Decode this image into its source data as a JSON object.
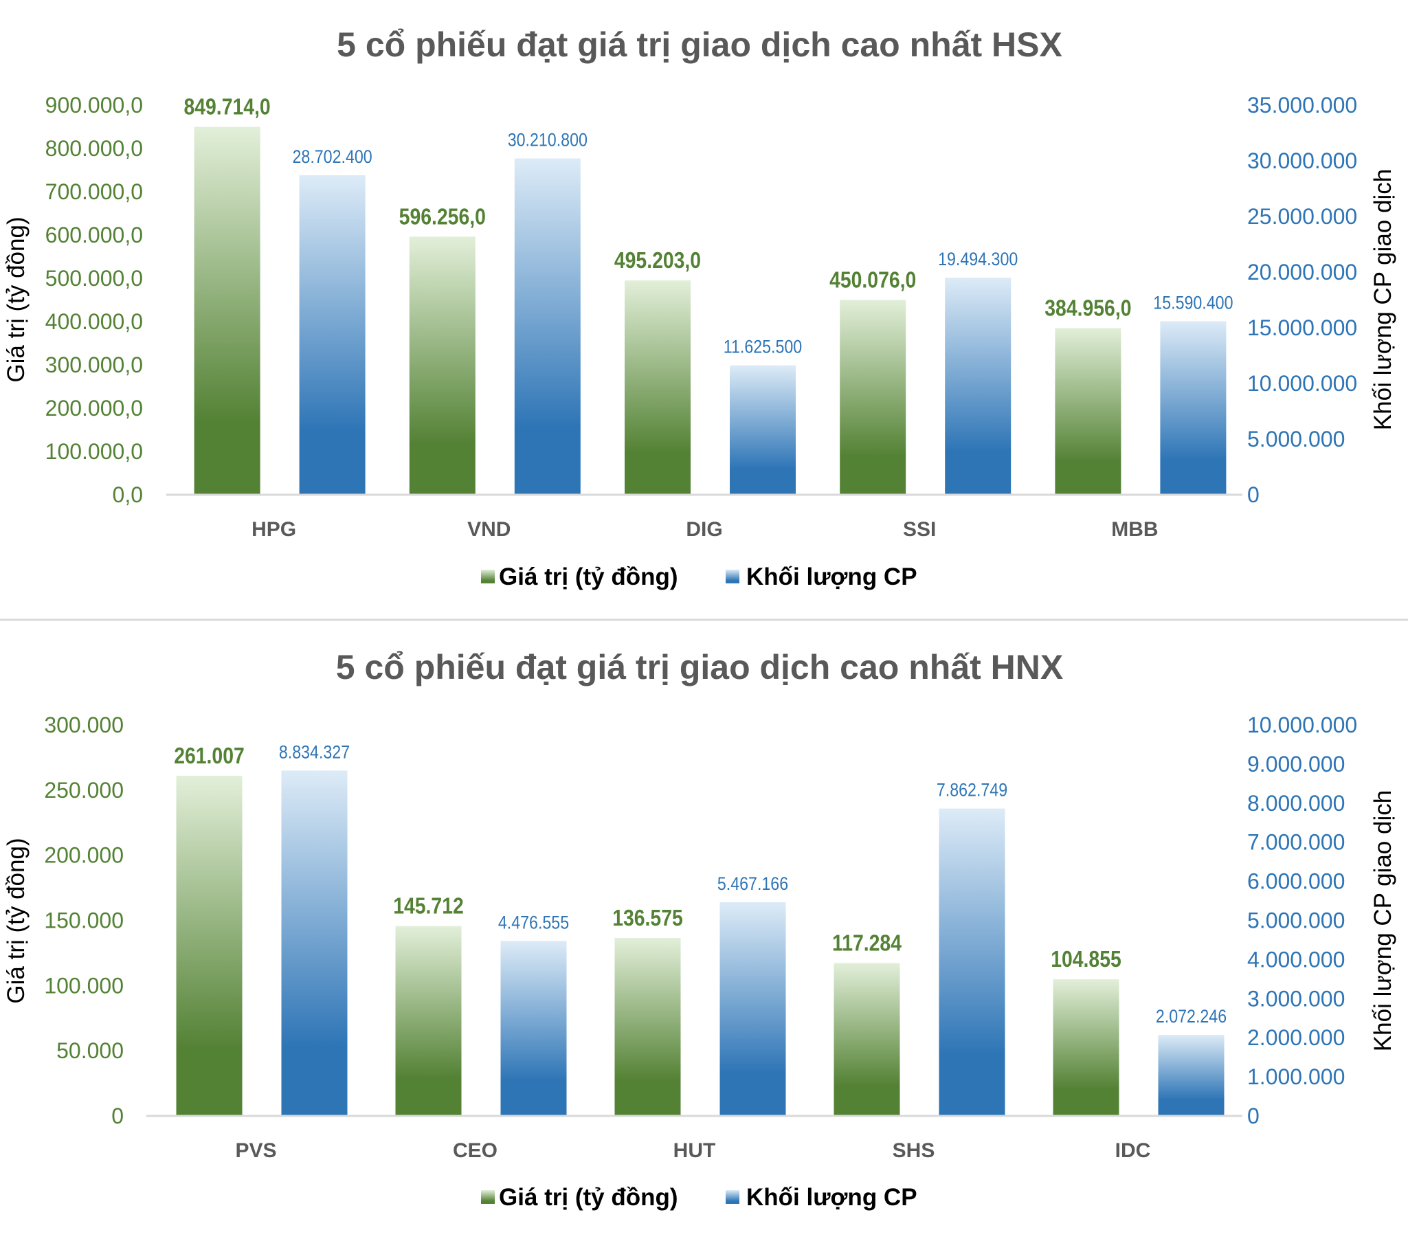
{
  "colors": {
    "value_dark": "#548235",
    "value_light": "#e2efd9",
    "volume_dark": "#2e75b6",
    "volume_light": "#ddebf7",
    "value_text": "#548235",
    "volume_text": "#2e75b6",
    "title_text": "#595959",
    "axis_line": "#d9d9d9"
  },
  "chart_data": [
    {
      "type": "bar",
      "title": "5 cổ phiếu đạt giá trị giao dịch cao nhất HSX",
      "ylabel": "Giá trị (tỷ đồng)",
      "y2label": "Khối lượng CP giao dịch",
      "categories": [
        "HPG",
        "VND",
        "DIG",
        "SSI",
        "MBB"
      ],
      "ylim": [
        0,
        900000
      ],
      "y2lim": [
        0,
        35000000
      ],
      "y_ticks": [
        "0,0",
        "100.000,0",
        "200.000,0",
        "300.000,0",
        "400.000,0",
        "500.000,0",
        "600.000,0",
        "700.000,0",
        "800.000,0",
        "900.000,0"
      ],
      "y2_ticks": [
        "0",
        "5.000.000",
        "10.000.000",
        "15.000.000",
        "20.000.000",
        "25.000.000",
        "30.000.000",
        "35.000.000"
      ],
      "grid": false,
      "legend_position": "bottom",
      "series": [
        {
          "name": "Giá trị (tỷ đồng)",
          "axis": "left",
          "values": [
            849714.0,
            596256.0,
            495203.0,
            450076.0,
            384956.0
          ],
          "labels": [
            "849.714,0",
            "596.256,0",
            "495.203,0",
            "450.076,0",
            "384.956,0"
          ]
        },
        {
          "name": "Khối lượng CP",
          "axis": "right",
          "values": [
            28702400,
            30210800,
            11625500,
            19494300,
            15590400
          ],
          "labels": [
            "28.702.400",
            "30.210.800",
            "11.625.500",
            "19.494.300",
            "15.590.400"
          ]
        }
      ]
    },
    {
      "type": "bar",
      "title": "5 cổ phiếu đạt giá trị giao dịch cao nhất HNX",
      "ylabel": "Giá trị (tỷ đồng)",
      "y2label": "Khối lượng CP giao dịch",
      "categories": [
        "PVS",
        "CEO",
        "HUT",
        "SHS",
        "IDC"
      ],
      "ylim": [
        0,
        300000
      ],
      "y2lim": [
        0,
        10000000
      ],
      "y_ticks": [
        "0",
        "50.000",
        "100.000",
        "150.000",
        "200.000",
        "250.000",
        "300.000"
      ],
      "y2_ticks": [
        "0",
        "1.000.000",
        "2.000.000",
        "3.000.000",
        "4.000.000",
        "5.000.000",
        "6.000.000",
        "7.000.000",
        "8.000.000",
        "9.000.000",
        "10.000.000"
      ],
      "grid": false,
      "legend_position": "bottom",
      "series": [
        {
          "name": "Giá trị (tỷ đồng)",
          "axis": "left",
          "values": [
            261007,
            145712,
            136575,
            117284,
            104855
          ],
          "labels": [
            "261.007",
            "145.712",
            "136.575",
            "117.284",
            "104.855"
          ]
        },
        {
          "name": "Khối lượng CP",
          "axis": "right",
          "values": [
            8834327,
            4476555,
            5467166,
            7862749,
            2072246
          ],
          "labels": [
            "8.834.327",
            "4.476.555",
            "5.467.166",
            "7.862.749",
            "2.072.246"
          ]
        }
      ]
    }
  ]
}
